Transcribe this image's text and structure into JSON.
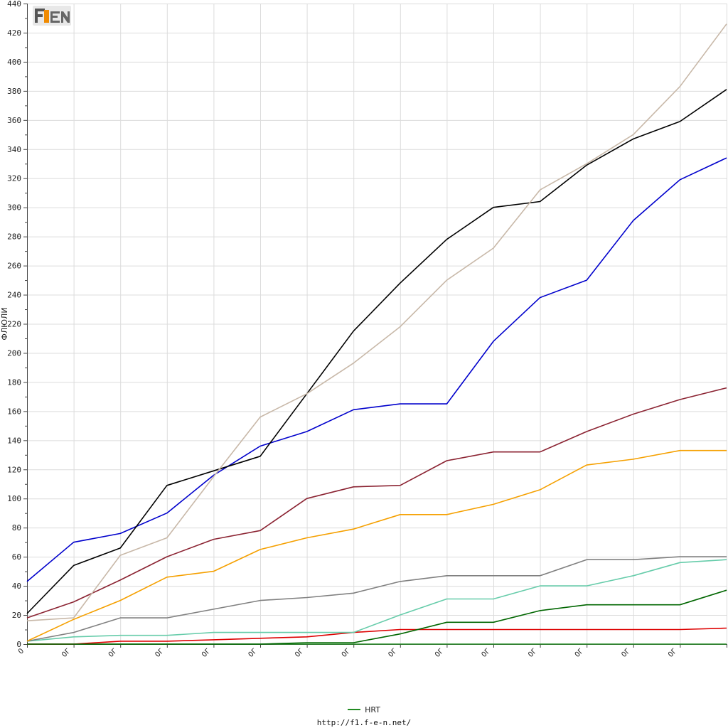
{
  "chart_data": {
    "type": "line",
    "ylabel": "ФЛЮЛИ",
    "ylim": [
      0,
      440
    ],
    "yticks": [
      0,
      20,
      40,
      60,
      80,
      100,
      120,
      140,
      160,
      180,
      200,
      220,
      240,
      260,
      280,
      300,
      320,
      340,
      360,
      380,
      400,
      420,
      440
    ],
    "categories": [
      "0",
      "0Г",
      "0Г",
      "0Г",
      "0Г",
      "0Г",
      "0Г",
      "0Г",
      "0Г",
      "0Г",
      "0Г",
      "0Г",
      "0Г",
      "0Г",
      "0Г",
      ""
    ],
    "grid": true,
    "series": [
      {
        "color": "#c8b8a8",
        "values": [
          16,
          18,
          61,
          73,
          115,
          156,
          172,
          193,
          218,
          250,
          272,
          312,
          330,
          350,
          383,
          426
        ]
      },
      {
        "color": "#000000",
        "values": [
          21,
          54,
          66,
          109,
          119,
          129,
          172,
          215,
          248,
          278,
          300,
          304,
          329,
          347,
          359,
          381
        ]
      },
      {
        "color": "#0000cc",
        "values": [
          43,
          70,
          76,
          90,
          116,
          136,
          146,
          161,
          165,
          165,
          208,
          238,
          250,
          291,
          319,
          334
        ]
      },
      {
        "color": "#8b2332",
        "values": [
          18,
          29,
          44,
          60,
          72,
          78,
          100,
          108,
          109,
          126,
          132,
          132,
          146,
          158,
          168,
          176
        ]
      },
      {
        "color": "#f5a000",
        "values": [
          2,
          17,
          30,
          46,
          50,
          65,
          73,
          79,
          89,
          89,
          96,
          106,
          123,
          127,
          133,
          133
        ]
      },
      {
        "color": "#808080",
        "values": [
          2,
          8,
          18,
          18,
          24,
          30,
          32,
          35,
          43,
          47,
          47,
          47,
          58,
          58,
          60,
          60
        ]
      },
      {
        "color": "#66ccaa",
        "values": [
          2,
          5,
          6,
          6,
          8,
          8,
          8,
          8,
          20,
          31,
          31,
          40,
          40,
          47,
          56,
          58
        ]
      },
      {
        "color": "#006600",
        "values": [
          0,
          0,
          0,
          0,
          0,
          0,
          1,
          1,
          7,
          15,
          15,
          23,
          27,
          27,
          27,
          37
        ]
      },
      {
        "color": "#dd0000",
        "values": [
          0,
          0,
          2,
          2,
          3,
          4,
          5,
          8,
          10,
          10,
          10,
          10,
          10,
          10,
          10,
          11
        ]
      },
      {
        "name": "HRT",
        "color": "#228b22",
        "values": [
          0,
          0,
          0,
          0,
          0,
          0,
          0,
          0,
          0,
          0,
          0,
          0,
          0,
          0,
          0,
          0
        ]
      }
    ]
  },
  "legend": {
    "label": "HRT",
    "color": "#228b22"
  },
  "logo": {
    "text": "F1EN"
  },
  "footer": {
    "url": "http://f1.f-e-n.net/"
  }
}
